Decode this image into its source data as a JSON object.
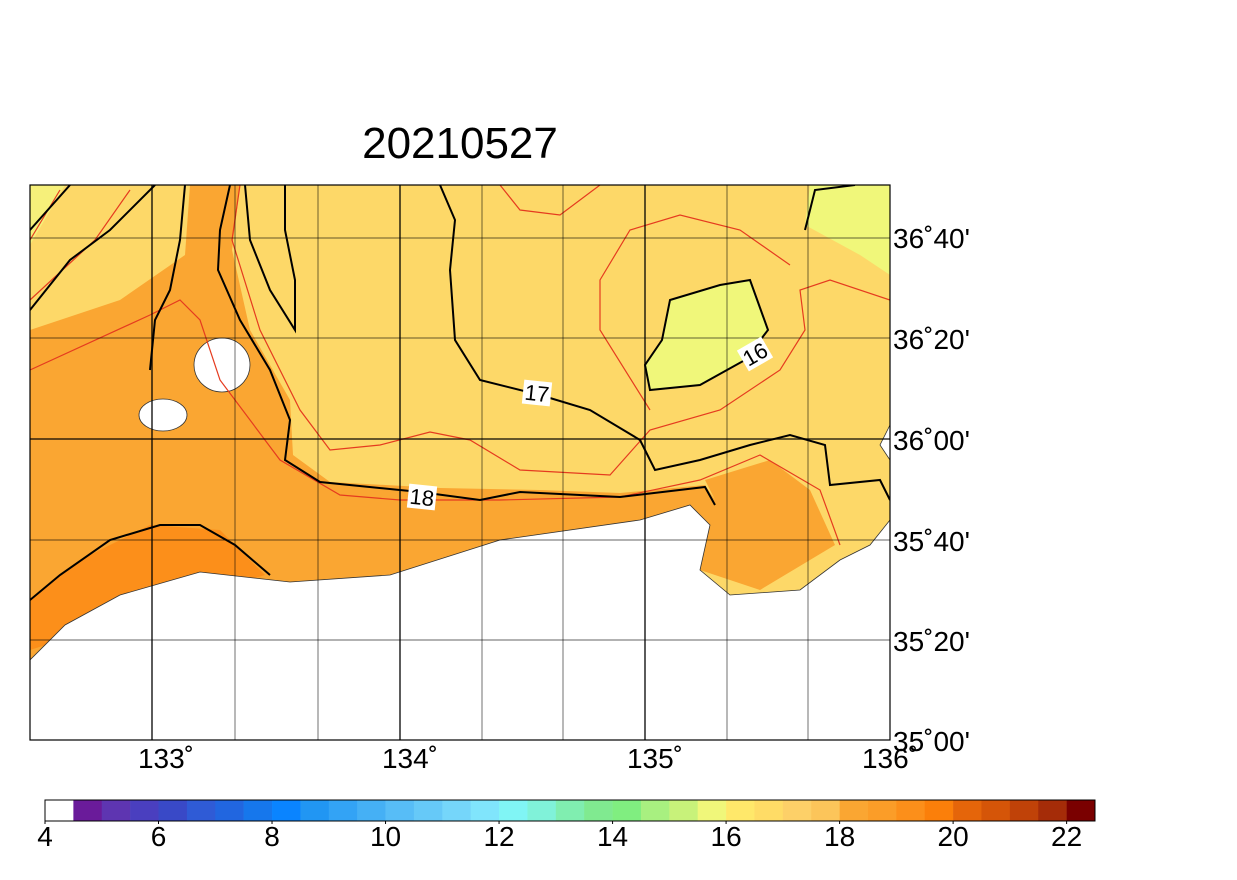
{
  "title": "20210527",
  "lon_labels": [
    "133˚",
    "134˚",
    "135˚",
    "136˚"
  ],
  "lat_labels": [
    "36˚40'",
    "36˚20'",
    "36˚00'",
    "35˚40'",
    "35˚20'",
    "35˚00'"
  ],
  "contour_labels": [
    "16",
    "17",
    "18"
  ],
  "colorbar": {
    "range": [
      4,
      22.5
    ],
    "ticks": [
      4,
      6,
      8,
      10,
      12,
      14,
      16,
      18,
      20,
      22
    ],
    "colors": [
      "#ffffff",
      "#6a1b9a",
      "#5e35b1",
      "#4a3fbf",
      "#3949c7",
      "#2f5bd6",
      "#2166e0",
      "#1677ec",
      "#0a84ff",
      "#2196f3",
      "#33a3f5",
      "#45b0f5",
      "#57bdf7",
      "#66c9f8",
      "#75d6fa",
      "#80e5fc",
      "#80f5f5",
      "#80f2d9",
      "#80eeb0",
      "#80ea90",
      "#80ee80",
      "#a8f080",
      "#c8f27a",
      "#f0f77a",
      "#ffe86a",
      "#ffdc66",
      "#fdd068",
      "#fcc55a",
      "#faa632",
      "#fb9d28",
      "#fc8f1a",
      "#fb7f0a",
      "#e5650a",
      "#d55508",
      "#c04208",
      "#a52c08",
      "#7a0000"
    ]
  }
}
